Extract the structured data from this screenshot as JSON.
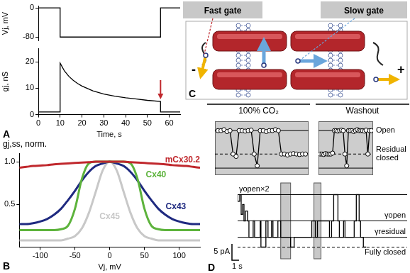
{
  "chart_data": [
    {
      "type": "line",
      "x": [
        0,
        10,
        10,
        56,
        56,
        65
      ],
      "values": [
        0,
        0,
        -80,
        -80,
        0,
        0
      ],
      "color": "#000000",
      "xlim": [
        0,
        65
      ],
      "ylim": [
        -90,
        5
      ],
      "yticks": [
        -80,
        0
      ],
      "y_label": "Vj, mV",
      "tick_labels": "y",
      "grid": false
    },
    {
      "type": "line",
      "panel": "A",
      "x": [
        0,
        10,
        10,
        11,
        12,
        14,
        16,
        18,
        20,
        25,
        30,
        35,
        40,
        45,
        50,
        56,
        56,
        65
      ],
      "values": [
        1,
        1,
        19.5,
        18,
        16.5,
        14.5,
        13,
        11.8,
        10.8,
        9,
        7.8,
        7,
        6.4,
        5.9,
        5.4,
        5,
        1,
        1
      ],
      "color": "#000000",
      "xlim": [
        0,
        65
      ],
      "xticks": [
        0,
        10,
        20,
        30,
        40,
        50,
        60
      ],
      "ylim": [
        0,
        25
      ],
      "yticks": [
        0,
        10,
        20
      ],
      "x_label": "Time, s",
      "y_label": "gj, nS",
      "grid": false
    },
    {
      "type": "line",
      "panel": "B",
      "x": [
        -130,
        -120,
        -110,
        -100,
        -90,
        -80,
        -70,
        -60,
        -50,
        -40,
        -30,
        -20,
        -10,
        0,
        10,
        20,
        30,
        40,
        50,
        60,
        70,
        80,
        90,
        100,
        110,
        120,
        130
      ],
      "series": [
        {
          "name": "mCx30.2",
          "color": "#c0282d",
          "values": [
            0.93,
            0.94,
            0.95,
            0.955,
            0.96,
            0.97,
            0.975,
            0.98,
            0.985,
            0.99,
            0.995,
            1,
            1,
            1,
            1,
            1,
            0.995,
            0.99,
            0.985,
            0.98,
            0.975,
            0.97,
            0.96,
            0.955,
            0.95,
            0.94,
            0.93
          ]
        },
        {
          "name": "Cx40",
          "color": "#5db33c",
          "values": [
            0.2,
            0.2,
            0.2,
            0.2,
            0.2,
            0.2,
            0.21,
            0.25,
            0.45,
            0.8,
            0.98,
            1,
            1,
            1,
            1,
            1,
            0.98,
            0.8,
            0.45,
            0.25,
            0.21,
            0.2,
            0.2,
            0.2,
            0.2,
            0.2,
            0.2
          ]
        },
        {
          "name": "Cx43",
          "color": "#1f2a80",
          "values": [
            0.27,
            0.27,
            0.28,
            0.3,
            0.33,
            0.38,
            0.45,
            0.55,
            0.66,
            0.78,
            0.88,
            0.95,
            0.98,
            1,
            0.98,
            0.95,
            0.88,
            0.78,
            0.66,
            0.55,
            0.45,
            0.38,
            0.33,
            0.3,
            0.28,
            0.27,
            0.27
          ]
        },
        {
          "name": "Cx45",
          "color": "#c8c8c8",
          "values": [
            0.08,
            0.08,
            0.08,
            0.08,
            0.08,
            0.08,
            0.08,
            0.1,
            0.13,
            0.22,
            0.4,
            0.65,
            0.9,
            1,
            0.9,
            0.65,
            0.4,
            0.22,
            0.13,
            0.1,
            0.08,
            0.08,
            0.08,
            0.08,
            0.08,
            0.08,
            0.08
          ]
        }
      ],
      "xlim": [
        -130,
        130
      ],
      "xticks": [
        -100,
        -50,
        0,
        50,
        100
      ],
      "ylim": [
        0,
        1.1
      ],
      "yticks": [
        {
          "value": 0.5,
          "label": "0.5"
        },
        {
          "value": 1,
          "label": "1.0"
        }
      ],
      "x_label": "Vj, mV",
      "y_label": "gj,ss, norm.",
      "grid": false
    },
    {
      "type": "line",
      "panel": "D",
      "x": [
        0,
        0.3,
        0.5,
        0.7,
        0.9,
        1.1,
        1.4,
        1.6,
        2.2,
        2.4,
        3.2,
        3.3,
        4.0,
        4.3,
        4.8,
        5.0,
        5.7,
        6.1,
        6.8,
        7.5,
        8.0,
        9.0,
        10.5,
        11.0,
        11.3,
        11.6,
        13.0,
        13.3,
        13.6,
        14.2,
        14.4,
        15.0,
        15.2,
        16.5,
        16.8,
        17.2,
        17.4,
        17.8,
        18.2
      ],
      "values": [
        16,
        14,
        16,
        10,
        13,
        8,
        11,
        8,
        3,
        8,
        3,
        8,
        0,
        8,
        3,
        8,
        3,
        8,
        3,
        3,
        0,
        3,
        3,
        8,
        3,
        8,
        8,
        3,
        8,
        16,
        8,
        3,
        8,
        3,
        8,
        16,
        8,
        3,
        0
      ],
      "color": "#000000",
      "line_style": "steps",
      "xlim": [
        0,
        24
      ],
      "ylim": [
        -4,
        20
      ],
      "tick_labels": false,
      "grid": false,
      "levels": [
        {
          "label": "γopen×2",
          "value": 16,
          "line_style": "solid"
        },
        {
          "label": "γopen",
          "value": 8,
          "line_style": "solid"
        },
        {
          "label": "γresidual",
          "value": 3,
          "line_style": "solid"
        },
        {
          "label": "Fully closed",
          "value": 0,
          "line_style": "dashed"
        }
      ],
      "windows": [
        [
          6.1,
          7.5
        ],
        [
          10.8,
          11.8
        ]
      ],
      "scale_bar": {
        "x": 1,
        "x_label": "1 s",
        "y": 5,
        "y_label": "5 pA"
      },
      "conditions": [
        {
          "label": "100% CO₂"
        },
        {
          "label": "Washout"
        }
      ]
    },
    {
      "type": "line",
      "marker": "circle",
      "color": "#000000",
      "x": [
        0,
        1,
        2,
        3,
        4,
        5,
        6,
        7,
        8,
        9,
        10,
        11,
        12,
        13,
        14,
        15,
        16,
        17,
        18,
        19,
        20,
        21,
        22,
        23,
        24,
        25,
        26,
        27,
        28,
        29
      ],
      "values": [
        8,
        8,
        8.2,
        7.8,
        8,
        3,
        2.5,
        8,
        8,
        7.9,
        8,
        8.1,
        3,
        0.5,
        8,
        8,
        7.8,
        8,
        8,
        8.2,
        8,
        3,
        3,
        2.8,
        3,
        3.1,
        3,
        2.9,
        3,
        3
      ],
      "xlim": [
        -1,
        30
      ],
      "ylim": [
        -1.5,
        10
      ],
      "tick_labels": false,
      "grid": false,
      "levels": [
        {
          "value": 8,
          "line_style": "solid"
        },
        {
          "value": 3,
          "line_style": "dashed"
        },
        {
          "value": 0,
          "line_style": "solid"
        }
      ]
    },
    {
      "type": "line",
      "marker": "circle",
      "color": "#000000",
      "x": [
        0,
        1,
        2,
        3,
        4,
        5,
        6,
        7,
        8,
        9,
        10,
        11,
        12,
        13,
        14,
        15,
        16,
        17,
        18,
        19,
        20,
        21,
        22,
        23,
        24,
        25,
        26,
        27,
        28,
        29
      ],
      "values": [
        3,
        3,
        2.9,
        3.1,
        3,
        3,
        3,
        3.2,
        8,
        8,
        7.9,
        8,
        8.1,
        8,
        3,
        0.5,
        8,
        8,
        8,
        7.8,
        8,
        8.2,
        8,
        8,
        8,
        7.9,
        8.1,
        3,
        8,
        8
      ],
      "xlim": [
        -1,
        30
      ],
      "ylim": [
        -1.5,
        10
      ],
      "tick_labels": false,
      "grid": false,
      "levels": [
        {
          "label": [
            "Open"
          ],
          "value": 8,
          "line_style": "solid"
        },
        {
          "label": [
            "Residual",
            "closed"
          ],
          "value": 3,
          "line_style": "dashed"
        },
        {
          "value": 0,
          "line_style": "solid"
        }
      ]
    }
  ],
  "diagram": {
    "panel": "C",
    "gates": [
      "Fast gate",
      "Slow gate"
    ],
    "signs": [
      "-",
      "+"
    ]
  }
}
